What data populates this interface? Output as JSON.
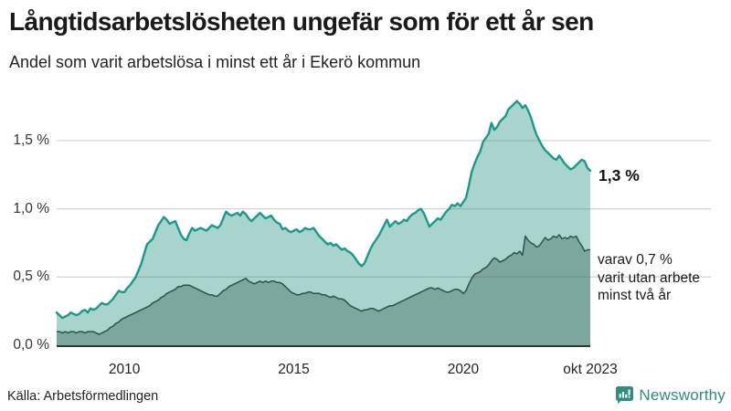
{
  "header": {
    "title": "Långtidsarbetslösheten ungefär som för ett år sen",
    "subtitle": "Andel som varit arbetslösa i minst ett år i Ekerö kommun"
  },
  "chart_data": {
    "type": "area",
    "unit": "%",
    "x_start": "2008-01",
    "x_end": "2023-10",
    "x_frequency": "monthly",
    "ylim": [
      0,
      1.85
    ],
    "grid": "horizontal",
    "colors": {
      "total_line": "#189a8b",
      "total_fill": "#a8d4cd",
      "twoyear_line": "#30504a",
      "twoyear_fill": "#7ca79e",
      "gridline": "#dddddd",
      "axis": "#333333"
    },
    "y_ticks": [
      {
        "label": "0,0 %",
        "value": 0.0
      },
      {
        "label": "0,5 %",
        "value": 0.5
      },
      {
        "label": "1,0 %",
        "value": 1.0
      },
      {
        "label": "1,5 %",
        "value": 1.5
      }
    ],
    "x_ticks": [
      {
        "label": "2010",
        "index": 24
      },
      {
        "label": "2015",
        "index": 84
      },
      {
        "label": "2020",
        "index": 144
      },
      {
        "label": "okt 2023",
        "index": 189
      }
    ],
    "series": [
      {
        "name": "Arbetslösa minst ett år",
        "values": [
          0.24,
          0.22,
          0.2,
          0.21,
          0.22,
          0.24,
          0.23,
          0.22,
          0.23,
          0.25,
          0.26,
          0.24,
          0.27,
          0.26,
          0.27,
          0.29,
          0.31,
          0.3,
          0.3,
          0.32,
          0.34,
          0.37,
          0.4,
          0.39,
          0.39,
          0.42,
          0.44,
          0.47,
          0.5,
          0.55,
          0.6,
          0.67,
          0.74,
          0.76,
          0.78,
          0.83,
          0.88,
          0.91,
          0.94,
          0.92,
          0.89,
          0.9,
          0.91,
          0.86,
          0.81,
          0.78,
          0.77,
          0.82,
          0.86,
          0.84,
          0.85,
          0.86,
          0.85,
          0.84,
          0.86,
          0.88,
          0.87,
          0.86,
          0.88,
          0.93,
          0.98,
          0.96,
          0.95,
          0.96,
          0.97,
          0.95,
          0.98,
          0.96,
          0.93,
          0.91,
          0.93,
          0.95,
          0.97,
          0.95,
          0.93,
          0.94,
          0.95,
          0.92,
          0.9,
          0.89,
          0.85,
          0.86,
          0.84,
          0.83,
          0.84,
          0.85,
          0.83,
          0.84,
          0.86,
          0.85,
          0.85,
          0.86,
          0.83,
          0.8,
          0.78,
          0.76,
          0.74,
          0.75,
          0.73,
          0.74,
          0.72,
          0.7,
          0.71,
          0.69,
          0.68,
          0.66,
          0.63,
          0.6,
          0.58,
          0.6,
          0.65,
          0.7,
          0.74,
          0.77,
          0.8,
          0.84,
          0.88,
          0.92,
          0.87,
          0.89,
          0.91,
          0.89,
          0.9,
          0.92,
          0.91,
          0.94,
          0.96,
          0.97,
          0.99,
          1.0,
          0.97,
          0.92,
          0.87,
          0.89,
          0.91,
          0.93,
          0.92,
          0.95,
          0.98,
          1.0,
          1.03,
          1.02,
          1.04,
          1.02,
          1.05,
          1.08,
          1.17,
          1.27,
          1.33,
          1.38,
          1.42,
          1.49,
          1.52,
          1.55,
          1.63,
          1.58,
          1.6,
          1.64,
          1.66,
          1.68,
          1.73,
          1.75,
          1.77,
          1.79,
          1.77,
          1.74,
          1.76,
          1.72,
          1.67,
          1.6,
          1.54,
          1.5,
          1.46,
          1.43,
          1.41,
          1.39,
          1.37,
          1.36,
          1.39,
          1.36,
          1.33,
          1.31,
          1.29,
          1.3,
          1.32,
          1.34,
          1.36,
          1.35,
          1.3,
          1.28
        ]
      },
      {
        "name": "Varav utan arbete minst två år",
        "values": [
          0.1,
          0.1,
          0.09,
          0.1,
          0.09,
          0.1,
          0.1,
          0.09,
          0.1,
          0.1,
          0.09,
          0.1,
          0.1,
          0.1,
          0.09,
          0.08,
          0.09,
          0.1,
          0.11,
          0.13,
          0.14,
          0.16,
          0.17,
          0.19,
          0.2,
          0.21,
          0.22,
          0.23,
          0.24,
          0.25,
          0.26,
          0.27,
          0.28,
          0.29,
          0.31,
          0.32,
          0.33,
          0.35,
          0.36,
          0.38,
          0.39,
          0.4,
          0.41,
          0.43,
          0.43,
          0.44,
          0.44,
          0.44,
          0.43,
          0.42,
          0.41,
          0.4,
          0.39,
          0.38,
          0.37,
          0.37,
          0.36,
          0.36,
          0.38,
          0.4,
          0.41,
          0.43,
          0.44,
          0.45,
          0.46,
          0.47,
          0.48,
          0.49,
          0.47,
          0.46,
          0.45,
          0.46,
          0.47,
          0.46,
          0.47,
          0.46,
          0.47,
          0.47,
          0.46,
          0.46,
          0.45,
          0.43,
          0.41,
          0.39,
          0.38,
          0.37,
          0.37,
          0.38,
          0.38,
          0.39,
          0.39,
          0.38,
          0.38,
          0.38,
          0.37,
          0.37,
          0.36,
          0.35,
          0.36,
          0.35,
          0.34,
          0.34,
          0.33,
          0.31,
          0.29,
          0.28,
          0.27,
          0.26,
          0.25,
          0.26,
          0.26,
          0.27,
          0.27,
          0.26,
          0.25,
          0.26,
          0.27,
          0.28,
          0.29,
          0.29,
          0.3,
          0.31,
          0.32,
          0.33,
          0.34,
          0.35,
          0.36,
          0.37,
          0.38,
          0.39,
          0.4,
          0.41,
          0.42,
          0.42,
          0.41,
          0.42,
          0.41,
          0.4,
          0.39,
          0.39,
          0.4,
          0.41,
          0.41,
          0.4,
          0.38,
          0.4,
          0.45,
          0.49,
          0.52,
          0.53,
          0.54,
          0.56,
          0.57,
          0.59,
          0.62,
          0.64,
          0.63,
          0.61,
          0.62,
          0.63,
          0.65,
          0.66,
          0.68,
          0.67,
          0.69,
          0.66,
          0.8,
          0.77,
          0.75,
          0.74,
          0.72,
          0.73,
          0.76,
          0.79,
          0.77,
          0.78,
          0.8,
          0.79,
          0.81,
          0.78,
          0.79,
          0.78,
          0.8,
          0.79,
          0.8,
          0.76,
          0.73,
          0.69,
          0.7,
          0.7
        ]
      }
    ],
    "annotations": {
      "last_total": "1,3 %",
      "secondary_line1": "varav 0,7 %",
      "secondary_line2": "varit utan arbete",
      "secondary_line3": "minst två år"
    }
  },
  "footer": {
    "source": "Källa: Arbetsförmedlingen",
    "brand": "Newsworthy"
  }
}
